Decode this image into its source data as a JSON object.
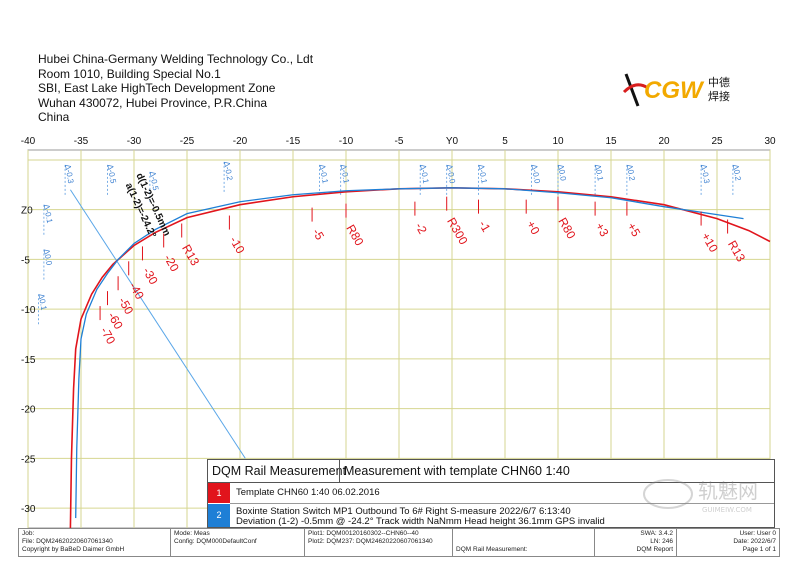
{
  "header": {
    "company": "Hubei China-Germany Welding Technology Co., Ldt",
    "address1": "Room 1010, Building Special No.1",
    "address2": "SBI, East Lake HighTech Development Zone",
    "address3": "Wuhan 430072, Hubei Province, P.R.China",
    "country": "China",
    "logo_text": "CGW",
    "logo_cn_top": "中德",
    "logo_cn_bottom": "焊接"
  },
  "chart_data": {
    "type": "line",
    "x_ticks": [
      "-40",
      "-35",
      "-30",
      "-25",
      "-20",
      "-15",
      "-10",
      "-5",
      "Y0",
      "5",
      "10",
      "15",
      "20",
      "25",
      "30"
    ],
    "y_ticks": [
      "Z0",
      "-5",
      "-10",
      "-15",
      "-20",
      "-25",
      "-30"
    ],
    "xlim": [
      -40,
      30
    ],
    "ylim": [
      -32,
      6
    ],
    "grid": true,
    "series": [
      {
        "name": "Template CHN60 1:40 06.02.2016",
        "color": "#e1141c",
        "x": [
          -36.0,
          -35.9,
          -35.7,
          -35.5,
          -35.0,
          -34.0,
          -33.0,
          -32.0,
          -30.0,
          -28.0,
          -25.0,
          -20.0,
          -15.0,
          -10.0,
          -5.0,
          0.0,
          5.0,
          10.0,
          15.0,
          20.0,
          25.0,
          28.0,
          30.0
        ],
        "y": [
          -32.0,
          -25.0,
          -18.0,
          -14.0,
          -11.0,
          -8.5,
          -6.8,
          -5.5,
          -3.6,
          -2.3,
          -0.8,
          0.5,
          1.3,
          1.8,
          2.1,
          2.2,
          2.1,
          1.8,
          1.3,
          0.5,
          -0.9,
          -2.1,
          -3.2
        ]
      },
      {
        "name": "Boxinte Station Switch MP1 Outbound To 6# Right S-measure",
        "color": "#1e7fd6",
        "x": [
          -35.5,
          -35.4,
          -35.2,
          -35.0,
          -34.5,
          -33.5,
          -32.5,
          -31.5,
          -30.0,
          -28.0,
          -25.0,
          -20.0,
          -15.0,
          -10.0,
          -5.0,
          0.0,
          5.0,
          10.0,
          15.0,
          20.0,
          25.0,
          27.5
        ],
        "y": [
          -31.0,
          -24.0,
          -17.0,
          -13.0,
          -10.5,
          -8.0,
          -6.4,
          -5.0,
          -3.4,
          -2.0,
          -0.4,
          0.8,
          1.5,
          1.9,
          2.1,
          2.2,
          2.1,
          1.7,
          1.2,
          0.3,
          -0.5,
          -0.9
        ]
      }
    ],
    "deviation_labels": [
      {
        "text": "-70",
        "x": -33.2,
        "y": -11.5
      },
      {
        "text": "-60",
        "x": -32.5,
        "y": -10.0
      },
      {
        "text": "-50",
        "x": -31.5,
        "y": -8.5
      },
      {
        "text": "-40",
        "x": -30.5,
        "y": -7.0
      },
      {
        "text": "-30",
        "x": -29.2,
        "y": -5.5
      },
      {
        "text": "-20",
        "x": -27.2,
        "y": -4.2
      },
      {
        "text": "R13",
        "x": -25.5,
        "y": -3.2
      },
      {
        "text": "-10",
        "x": -21.0,
        "y": -2.4
      },
      {
        "text": "-5",
        "x": -13.2,
        "y": -1.6
      },
      {
        "text": "R80",
        "x": -10.0,
        "y": -1.2
      },
      {
        "text": "-2",
        "x": -3.5,
        "y": -1.0
      },
      {
        "text": "R300",
        "x": -0.5,
        "y": -0.5
      },
      {
        "text": "-1",
        "x": 2.5,
        "y": -0.8
      },
      {
        "text": "+0",
        "x": 7.0,
        "y": -0.8
      },
      {
        "text": "R80",
        "x": 10.0,
        "y": -0.5
      },
      {
        "text": "+3",
        "x": 13.5,
        "y": -1.0
      },
      {
        "text": "+5",
        "x": 16.5,
        "y": -1.0
      },
      {
        "text": "+10",
        "x": 23.5,
        "y": -2.0
      },
      {
        "text": "R13",
        "x": 26.0,
        "y": -2.8
      }
    ],
    "delta_labels": [
      {
        "text": "Δ0.1",
        "x": -39,
        "y": -8.5
      },
      {
        "text": "Δ0.0",
        "x": -38.5,
        "y": -4.0
      },
      {
        "text": "Δ-0.1",
        "x": -38.5,
        "y": 0.5
      },
      {
        "text": "Δ-0.3",
        "x": -36.5,
        "y": 4.5
      },
      {
        "text": "Δ-0.5",
        "x": -32.5,
        "y": 4.5
      },
      {
        "text": "Δ-0.5",
        "x": -28.5,
        "y": 3.8
      },
      {
        "text": "Δ-0.2",
        "x": -21.5,
        "y": 4.8
      },
      {
        "text": "Δ-0.1",
        "x": -12.5,
        "y": 4.5
      },
      {
        "text": "Δ-0.1",
        "x": -10.5,
        "y": 4.5
      },
      {
        "text": "Δ-0.1",
        "x": -3.0,
        "y": 4.5
      },
      {
        "text": "Δ-0.0",
        "x": -0.5,
        "y": 4.5
      },
      {
        "text": "Δ-0.1",
        "x": 2.5,
        "y": 4.5
      },
      {
        "text": "Δ-0.0",
        "x": 7.5,
        "y": 4.5
      },
      {
        "text": "Δ0.0",
        "x": 10.0,
        "y": 4.5
      },
      {
        "text": "Δ0.1",
        "x": 13.5,
        "y": 4.5
      },
      {
        "text": "Δ0.2",
        "x": 16.5,
        "y": 4.5
      },
      {
        "text": "Δ-0.3",
        "x": 23.5,
        "y": 4.5
      },
      {
        "text": "Δ0.2",
        "x": 26.5,
        "y": 4.5
      }
    ],
    "angle_labels": [
      {
        "text": "d(1-2)=-0.5mm",
        "x": -29.8,
        "y": 3.5
      },
      {
        "text": "a(1-2)=-24.2°",
        "x": -30.8,
        "y": 2.5
      }
    ]
  },
  "info": {
    "title": "DQM Rail Measurement",
    "measure_title": "Measurement with template CHN60 1:40",
    "swatch1": "1",
    "swatch2": "2",
    "line1": "Template CHN60 1:40   06.02.2016",
    "line2": "Boxinte  Station Switch MP1 Outbound To 6# Right S-measure 2022/6/7 6:13:40",
    "line3": "Deviation (1-2) -0.5mm @ -24.2° Track width NaNmm  Head height 36.1mm  GPS invalid"
  },
  "footer": {
    "job_label": "Job:",
    "file": "File: DQM24620220607061340",
    "copyright": "Copyright by BaBeD Daimer GmbH",
    "mode": "Mode: Meas",
    "config": "Config: DQM000DefaultConf",
    "plot1": "Plot1: DQM00120160302--CHN60--40",
    "plot2": "Plot2: DQM237: DQM24620220607061340",
    "report": "DQM Rail Measurement:",
    "swa": "SWA: 3.4.2",
    "ln": "LN: 246",
    "dqm_report": "DQM Report",
    "user": "User: User 0",
    "date": "Date: 2022/6/7",
    "page": "Page 1 of 1"
  },
  "watermark": {
    "text": "轨魅网",
    "sub": "GUIMEIW.COM"
  }
}
